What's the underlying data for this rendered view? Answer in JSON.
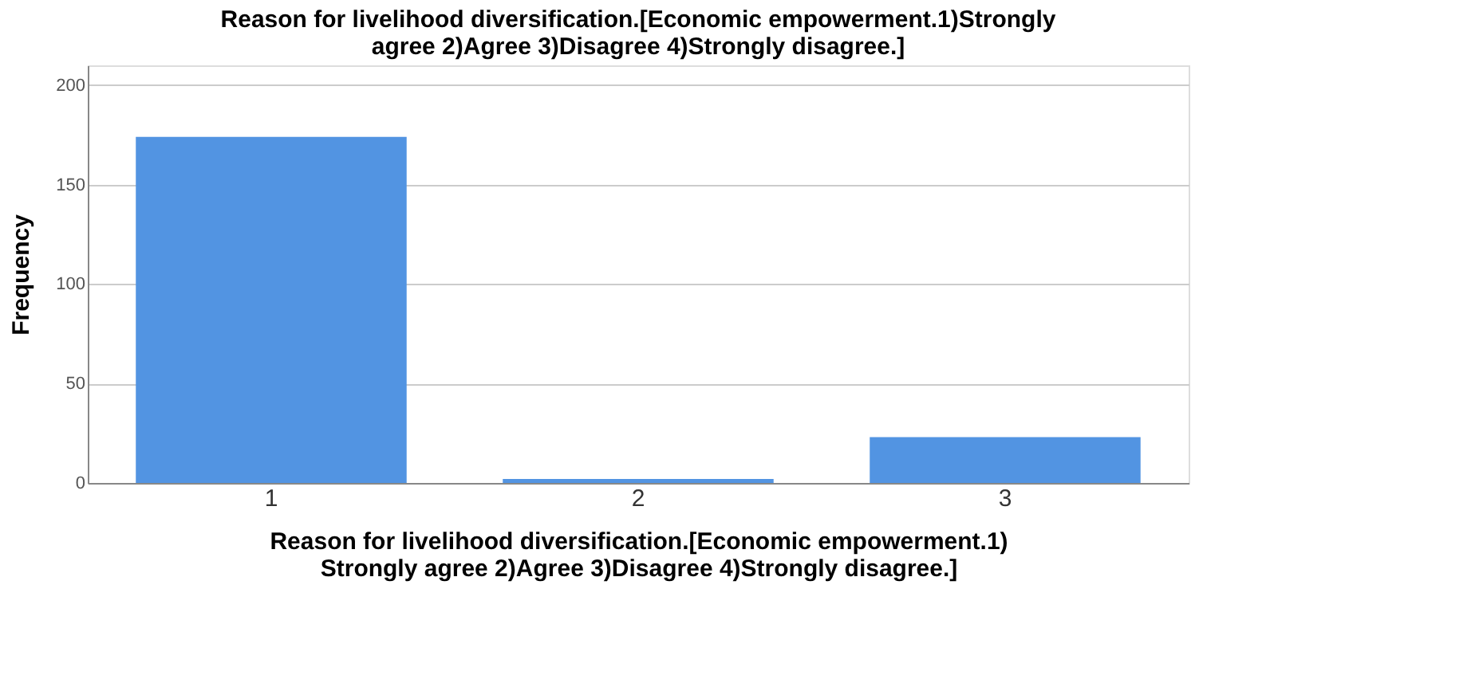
{
  "chart_data": {
    "type": "bar",
    "title": [
      "Reason for livelihood diversification.[Economic empowerment.1)Strongly",
      "agree 2)Agree 3)Disagree 4)Strongly disagree.]"
    ],
    "xlabel": [
      "Reason for livelihood diversification.[Economic empowerment.1)",
      "Strongly agree 2)Agree 3)Disagree 4)Strongly disagree.]"
    ],
    "ylabel": "Frequency",
    "categories": [
      "1",
      "2",
      "3"
    ],
    "values": [
      174,
      2,
      23
    ],
    "color": "#5294e2",
    "ylim": [
      0,
      210
    ],
    "yticks": [
      0,
      50,
      100,
      150,
      200
    ],
    "grid": "y"
  }
}
